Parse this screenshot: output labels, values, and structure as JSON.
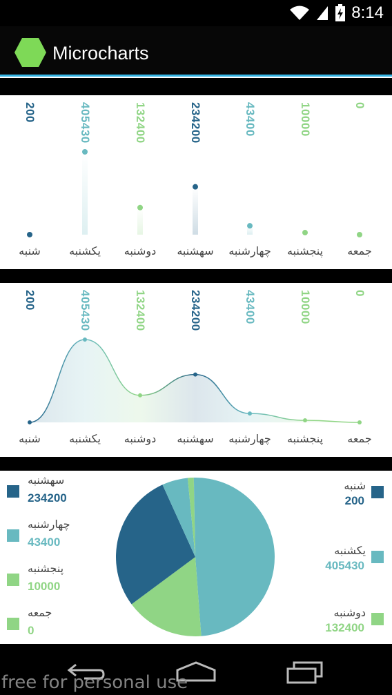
{
  "status": {
    "time": "8:14"
  },
  "app": {
    "title": "Microcharts"
  },
  "colors": {
    "dark_blue": "#266489",
    "teal": "#68B9C0",
    "green": "#90D585",
    "accent_blue": "#33B5E5"
  },
  "chart_data": [
    {
      "type": "lollipop",
      "categories": [
        "شنبه",
        "یکشنبه",
        "دوشنبه",
        "سهشنبه",
        "چهارشنبه",
        "پنجشنبه",
        "جمعه"
      ],
      "values": [
        200,
        405430,
        132400,
        234200,
        43400,
        10000,
        0
      ],
      "value_labels": [
        "200",
        "405430",
        "132400",
        "234200",
        "43400",
        "10000",
        "0"
      ],
      "colors": [
        "#266489",
        "#68B9C0",
        "#90D585",
        "#266489",
        "#68B9C0",
        "#90D585",
        "#90D585"
      ]
    },
    {
      "type": "line",
      "categories": [
        "شنبه",
        "یکشنبه",
        "دوشنبه",
        "سهشنبه",
        "چهارشنبه",
        "پنجشنبه",
        "جمعه"
      ],
      "values": [
        200,
        405430,
        132400,
        234200,
        43400,
        10000,
        0
      ],
      "value_labels": [
        "200",
        "405430",
        "132400",
        "234200",
        "43400",
        "10000",
        "0"
      ],
      "colors": [
        "#266489",
        "#68B9C0",
        "#90D585",
        "#266489",
        "#68B9C0",
        "#90D585",
        "#90D585"
      ]
    },
    {
      "type": "pie",
      "categories": [
        "شنبه",
        "یکشنبه",
        "دوشنبه",
        "سهشنبه",
        "چهارشنبه",
        "پنجشنبه",
        "جمعه"
      ],
      "values": [
        200,
        405430,
        132400,
        234200,
        43400,
        10000,
        0
      ],
      "value_labels": [
        "200",
        "405430",
        "132400",
        "234200",
        "43400",
        "10000",
        "0"
      ],
      "colors": [
        "#266489",
        "#68B9C0",
        "#90D585",
        "#266489",
        "#68B9C0",
        "#90D585",
        "#90D585"
      ]
    }
  ],
  "watermark": "free for personal use"
}
